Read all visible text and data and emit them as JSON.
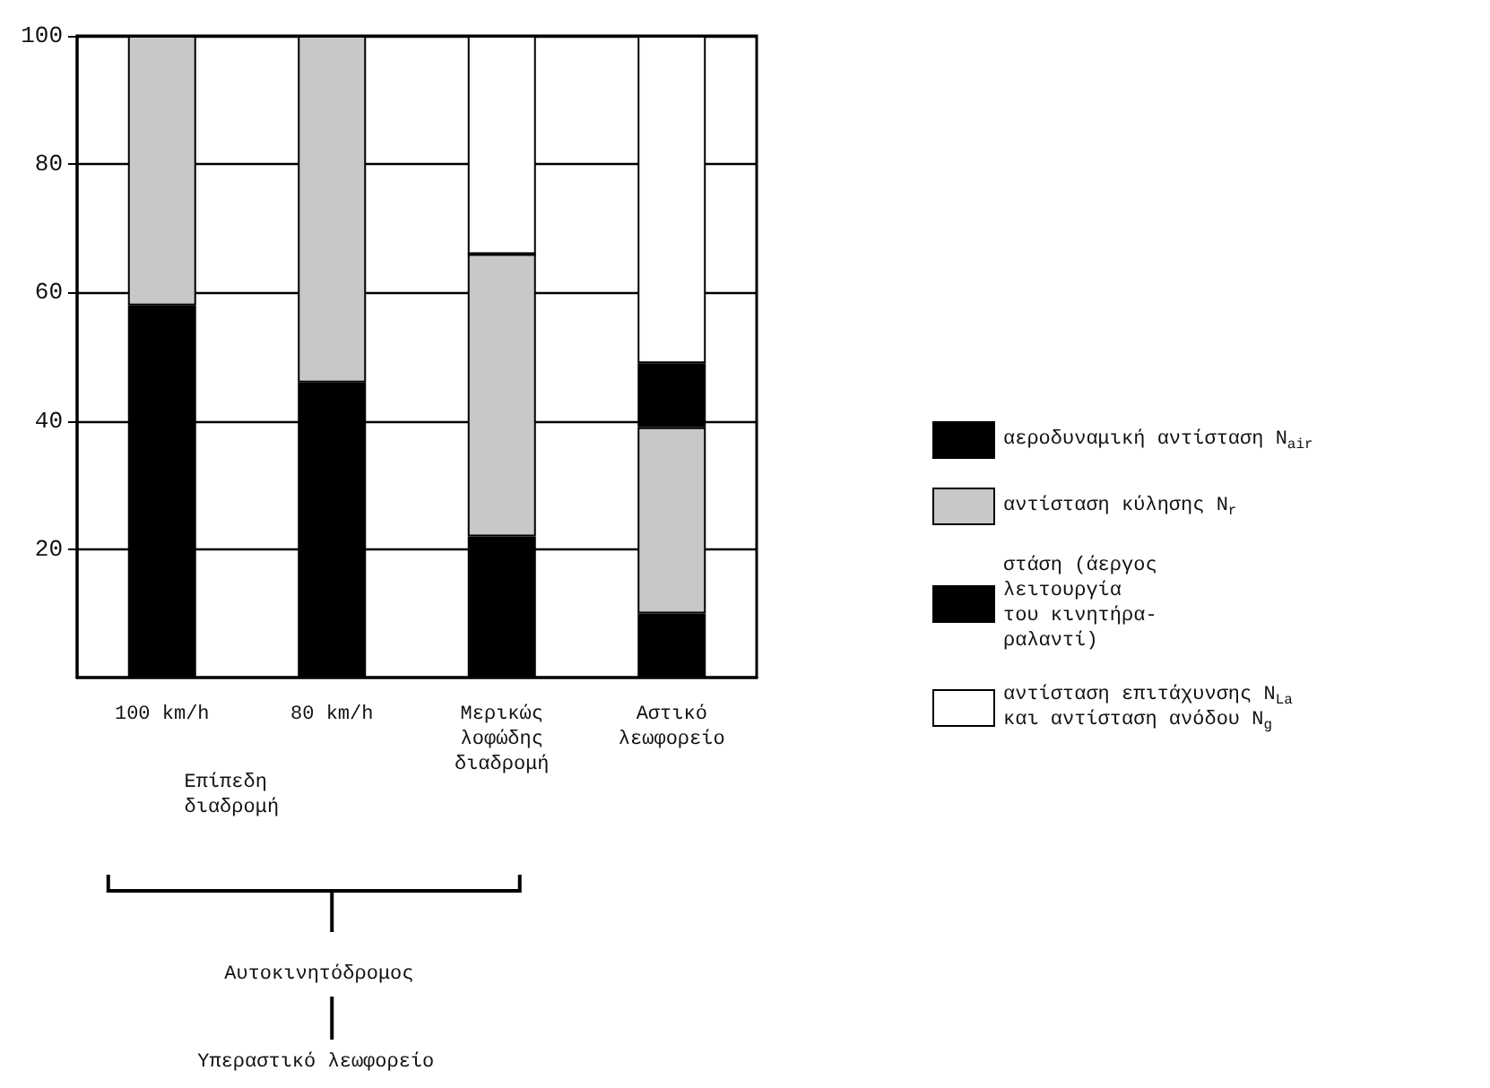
{
  "chart_data": {
    "type": "bar",
    "stacked": true,
    "categories": [
      "100 km/h",
      "80 km/h",
      "Μερικώς\nλοφώδης\nδιαδρομή",
      "Αστικό\nλεωφορείο"
    ],
    "series": [
      {
        "name": "αεροδυναμική αντίσταση N$_{air}$",
        "color": "#000000",
        "values": [
          58,
          46,
          22,
          10
        ]
      },
      {
        "name": "αντίσταση κύλησης N$_{r}$",
        "color": "#c8c8c8",
        "values": [
          42,
          54,
          44,
          29
        ]
      },
      {
        "name": "στάση (άεργος\nλειτουργία\nτου κινητήρα-\nραλαντί)",
        "color": "#000000",
        "values": [
          0,
          0,
          0,
          10
        ]
      },
      {
        "name": "αντίσταση επιτάχυνσης N$_{La}$\nκαι αντίσταση ανόδου N$_{g}$",
        "color": "#ffffff",
        "values": [
          0,
          0,
          34,
          51
        ]
      }
    ],
    "ylim": [
      0,
      100
    ],
    "yticks": [
      20,
      40,
      60,
      80,
      100
    ],
    "grid": "y",
    "legend": "right",
    "annotations": [
      "Επίπεδη\nδιαδρομή",
      "Αυτοκινητόδρομος",
      "Υπεραστικό λεωφορείο"
    ]
  }
}
